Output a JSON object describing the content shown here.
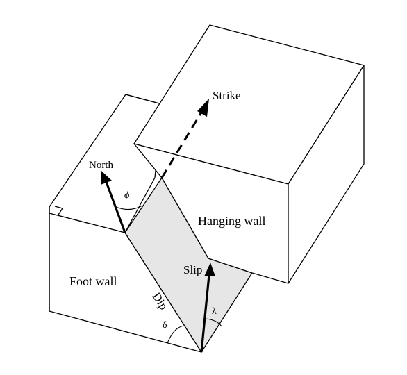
{
  "labels": {
    "strike": "Strike",
    "north": "North",
    "phi": "ϕ",
    "hanging_wall": "Hanging wall",
    "slip": "Slip",
    "foot_wall": "Foot wall",
    "dip": "Dip",
    "delta": "δ",
    "lambda": "λ"
  },
  "colors": {
    "line": "#000000",
    "fault_plane": "#e6e6e6",
    "background": "#ffffff"
  }
}
